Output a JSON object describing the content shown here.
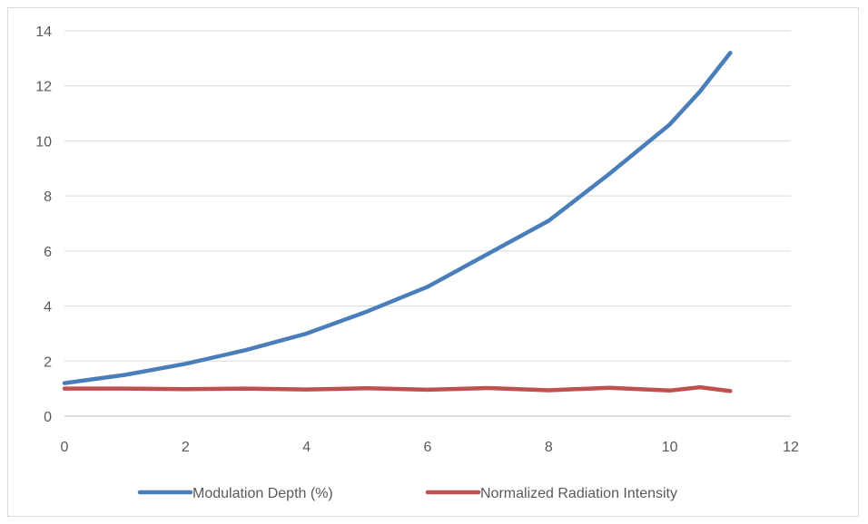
{
  "chart_data": {
    "type": "line",
    "title": "",
    "xlabel": "",
    "ylabel": "",
    "xlim": [
      0,
      12
    ],
    "ylim": [
      0,
      14
    ],
    "x_ticks": [
      0,
      2,
      4,
      6,
      8,
      10,
      12
    ],
    "y_ticks": [
      0,
      2,
      4,
      6,
      8,
      10,
      12,
      14
    ],
    "grid": "horizontal",
    "legend_position": "bottom",
    "series": [
      {
        "name": "Modulation Depth (%)",
        "color": "#4a7ebb",
        "x": [
          0,
          1,
          2,
          3,
          4,
          5,
          6,
          7,
          8,
          9,
          10,
          10.5,
          11
        ],
        "values": [
          1.2,
          1.5,
          1.9,
          2.4,
          3.0,
          3.8,
          4.7,
          5.9,
          7.1,
          8.8,
          10.6,
          11.8,
          13.2
        ]
      },
      {
        "name": "Normalized Radiation Intensity",
        "color": "#c0504d",
        "x": [
          0,
          1,
          2,
          3,
          4,
          5,
          6,
          7,
          8,
          9,
          10,
          10.5,
          11
        ],
        "values": [
          1.0,
          1.0,
          0.98,
          1.0,
          0.97,
          1.01,
          0.96,
          1.02,
          0.94,
          1.03,
          0.93,
          1.05,
          0.91
        ]
      }
    ]
  }
}
